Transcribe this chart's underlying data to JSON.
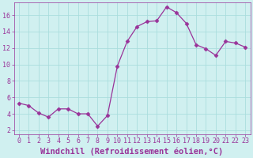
{
  "x": [
    0,
    1,
    2,
    3,
    4,
    5,
    6,
    7,
    8,
    9,
    10,
    11,
    12,
    13,
    14,
    15,
    16,
    17,
    18,
    19,
    20,
    21,
    22,
    23
  ],
  "y": [
    5.3,
    5.0,
    4.1,
    3.6,
    4.6,
    4.6,
    4.0,
    4.0,
    2.5,
    3.8,
    9.8,
    12.8,
    14.6,
    15.2,
    15.3,
    17.0,
    16.3,
    15.0,
    12.4,
    11.9,
    11.1,
    12.8,
    12.6,
    12.1
  ],
  "line_color": "#993399",
  "marker": "D",
  "marker_size": 2.5,
  "bg_color": "#d0f0f0",
  "grid_color": "#aadddd",
  "xlabel": "Windchill (Refroidissement éolien,°C)",
  "xlim": [
    -0.5,
    23.5
  ],
  "ylim": [
    1.5,
    17.5
  ],
  "yticks": [
    2,
    4,
    6,
    8,
    10,
    12,
    14,
    16
  ],
  "xticks": [
    0,
    1,
    2,
    3,
    4,
    5,
    6,
    7,
    8,
    9,
    10,
    11,
    12,
    13,
    14,
    15,
    16,
    17,
    18,
    19,
    20,
    21,
    22,
    23
  ],
  "tick_color": "#993399",
  "label_color": "#993399",
  "tick_fontsize": 6,
  "xlabel_fontsize": 7.5
}
